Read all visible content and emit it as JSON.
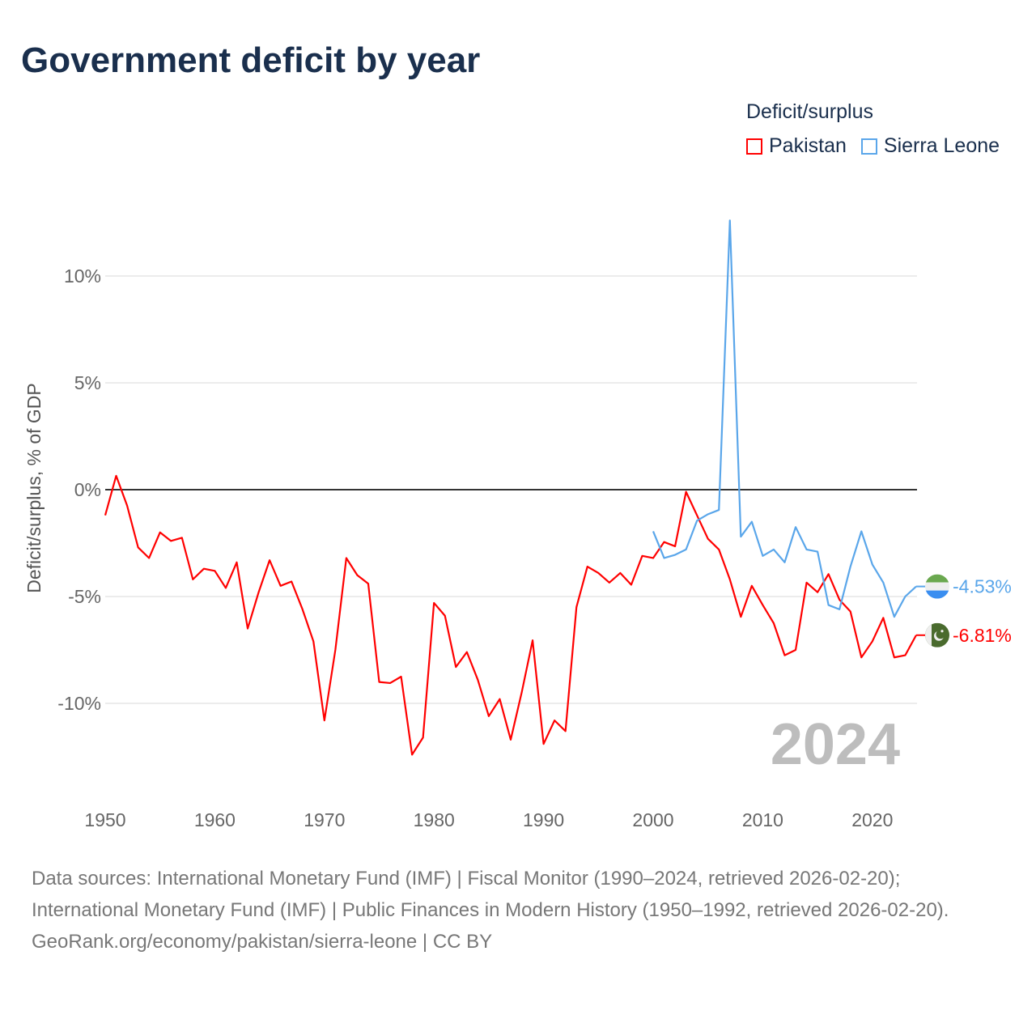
{
  "title": "Government deficit by year",
  "legend": {
    "title": "Deficit/surplus",
    "items": [
      {
        "label": "Pakistan",
        "color": "#ff0000"
      },
      {
        "label": "Sierra Leone",
        "color": "#5aa6ea"
      }
    ]
  },
  "chart_data": {
    "type": "line",
    "title": "Government deficit by year",
    "xlabel": "",
    "ylabel": "Deficit/surplus, % of GDP",
    "xlim": [
      1950,
      2024
    ],
    "ylim": [
      -13.5,
      13
    ],
    "x_ticks": [
      "1950",
      "1960",
      "1970",
      "1980",
      "1990",
      "2000",
      "2010",
      "2020"
    ],
    "y_ticks": [
      {
        "v": 10,
        "label": "10%"
      },
      {
        "v": 5,
        "label": "5%"
      },
      {
        "v": 0,
        "label": "0%"
      },
      {
        "v": -5,
        "label": "-5%"
      },
      {
        "v": -10,
        "label": "-10%"
      }
    ],
    "grid": true,
    "legend_position": "top-right",
    "year_annotation": "2024",
    "series": [
      {
        "name": "Pakistan",
        "color": "#ff0000",
        "end_label": "-6.81%",
        "start_year": 1950,
        "values": [
          -1.2,
          0.65,
          -0.75,
          -2.7,
          -3.2,
          -2.0,
          -2.4,
          -2.25,
          -4.2,
          -3.7,
          -3.8,
          -4.6,
          -3.4,
          -6.5,
          -4.8,
          -3.3,
          -4.5,
          -4.3,
          -5.6,
          -7.1,
          -10.8,
          -7.5,
          -3.2,
          -4.0,
          -4.4,
          -9.0,
          -9.05,
          -8.75,
          -12.4,
          -11.6,
          -5.3,
          -5.9,
          -8.3,
          -7.6,
          -8.9,
          -10.6,
          -9.8,
          -11.7,
          -9.5,
          -7.05,
          -11.9,
          -10.8,
          -11.3,
          -5.5,
          -3.6,
          -3.9,
          -4.35,
          -3.9,
          -4.45,
          -3.1,
          -3.2,
          -2.45,
          -2.65,
          -0.1,
          -1.2,
          -2.3,
          -2.8,
          -4.2,
          -5.95,
          -4.5,
          -5.4,
          -6.25,
          -7.75,
          -7.5,
          -4.35,
          -4.8,
          -3.95,
          -5.15,
          -5.7,
          -7.85,
          -7.1,
          -6.0,
          -7.85,
          -7.75,
          -6.81
        ]
      },
      {
        "name": "Sierra Leone",
        "color": "#5aa6ea",
        "end_label": "-4.53%",
        "start_year": 2000,
        "values": [
          -1.95,
          -3.2,
          -3.05,
          -2.8,
          -1.45,
          -1.15,
          -0.95,
          12.6,
          -2.2,
          -1.5,
          -3.1,
          -2.8,
          -3.4,
          -1.75,
          -2.8,
          -2.9,
          -5.4,
          -5.6,
          -3.6,
          -1.95,
          -3.5,
          -4.35,
          -5.95,
          -5.0,
          -4.53
        ]
      }
    ]
  },
  "footer": {
    "sources": "Data sources: International Monetary Fund (IMF) | Fiscal Monitor (1990–2024, retrieved 2026-02-20); International Monetary Fund (IMF) | Public Finances in Modern History (1950–1992, retrieved 2026-02-20).",
    "credit": "GeoRank.org/economy/pakistan/sierra-leone | CC BY"
  }
}
